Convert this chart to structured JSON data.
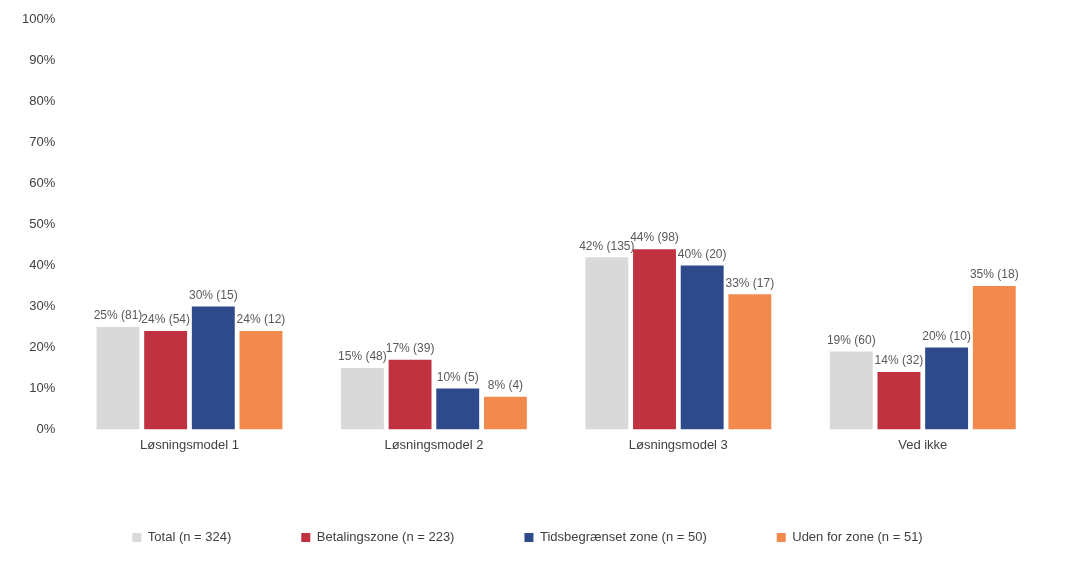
{
  "chart_data": {
    "type": "bar",
    "categories": [
      "Løsningsmodel 1",
      "Løsningsmodel 2",
      "Løsningsmodel 3",
      "Ved ikke"
    ],
    "series": [
      {
        "name": "Total (n = 324)",
        "color": "#d9d9d9",
        "values": [
          25,
          15,
          42,
          19
        ],
        "value_labels": [
          "25% (81)",
          "15% (48)",
          "42% (135)",
          "19% (60)"
        ]
      },
      {
        "name": "Betalingszone (n = 223)",
        "color": "#c0323f",
        "values": [
          24,
          17,
          44,
          14
        ],
        "value_labels": [
          "24% (54)",
          "17% (39)",
          "44% (98)",
          "14% (32)"
        ]
      },
      {
        "name": "Tidsbegrænset zone (n = 50)",
        "color": "#2f4a8a",
        "values": [
          30,
          10,
          40,
          20
        ],
        "value_labels": [
          "30% (15)",
          "10% (5)",
          "40% (20)",
          "20% (10)"
        ]
      },
      {
        "name": "Uden for zone (n = 51)",
        "color": "#f28a4e",
        "values": [
          24,
          8,
          33,
          35
        ],
        "value_labels": [
          "24% (12)",
          "8% (4)",
          "33% (17)",
          "35% (18)"
        ]
      }
    ],
    "ylim": [
      0,
      100
    ],
    "yticks": [
      {
        "value": 0,
        "label": "0%"
      },
      {
        "value": 10,
        "label": "10%"
      },
      {
        "value": 20,
        "label": "20%"
      },
      {
        "value": 30,
        "label": "30%"
      },
      {
        "value": 40,
        "label": "40%"
      },
      {
        "value": 50,
        "label": "50%"
      },
      {
        "value": 60,
        "label": "60%"
      },
      {
        "value": 70,
        "label": "70%"
      },
      {
        "value": 80,
        "label": "80%"
      },
      {
        "value": 90,
        "label": "90%"
      },
      {
        "value": 100,
        "label": "100%"
      }
    ],
    "legend": "bottom"
  }
}
